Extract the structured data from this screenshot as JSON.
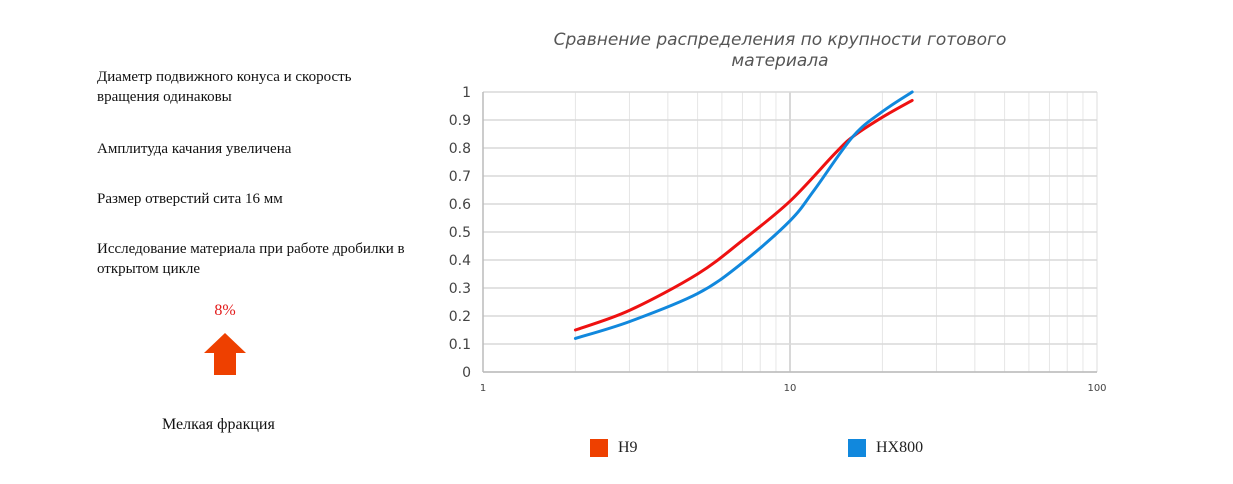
{
  "notes": [
    "Диаметр подвижного конуса и скорость вращения одинаковы",
    "Амплитуда качания увеличена",
    "Размер отверстий сита 16 мм",
    "Исследование материала при работе дробилки в открытом цикле"
  ],
  "indicator": {
    "value": "8%",
    "icon": "arrow-up-icon",
    "color": "#ee4000",
    "label": "Мелкая фракция"
  },
  "chart_data": {
    "type": "line",
    "title": "Сравнение распределения по крупности готового материала",
    "xscale": "log",
    "xlim": [
      1,
      100
    ],
    "ylim": [
      0,
      1
    ],
    "grid": true,
    "xticks": [
      "1",
      "10",
      "100"
    ],
    "yticks": [
      "0",
      "0.1",
      "0.2",
      "0.3",
      "0.4",
      "0.5",
      "0.6",
      "0.7",
      "0.8",
      "0.9",
      "1"
    ],
    "legend_position": "bottom",
    "series": [
      {
        "name": "H9",
        "color": "#ee1111",
        "legend_color": "#ee4000",
        "x": [
          2,
          3,
          5,
          7,
          10,
          14,
          16,
          20,
          25
        ],
        "y": [
          0.15,
          0.22,
          0.35,
          0.47,
          0.61,
          0.78,
          0.84,
          0.91,
          0.97
        ]
      },
      {
        "name": "HX800",
        "color": "#1188dd",
        "legend_color": "#1188dd",
        "x": [
          2,
          3,
          5,
          7,
          10,
          12,
          16,
          20,
          25
        ],
        "y": [
          0.12,
          0.18,
          0.28,
          0.39,
          0.54,
          0.65,
          0.84,
          0.93,
          1.0
        ]
      }
    ]
  }
}
